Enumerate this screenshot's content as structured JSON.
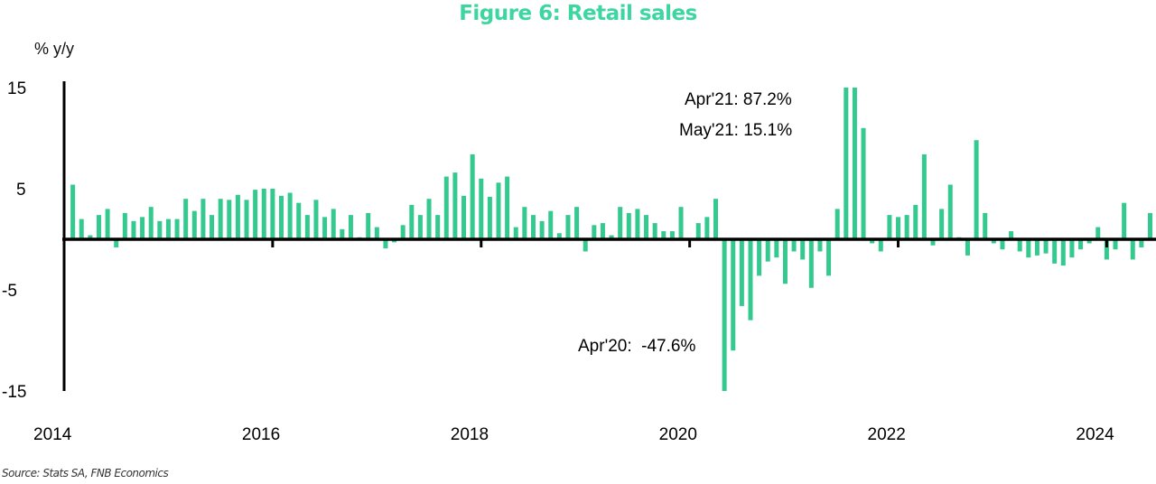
{
  "title": "Figure 6: Retail sales",
  "source": "Source: Stats SA, FNB Economics",
  "chart_data": {
    "type": "bar",
    "title": "Figure 6: Retail sales",
    "xlabel": "",
    "ylabel": "% y/y",
    "ylim": [
      -15,
      15
    ],
    "yticks": [
      "15",
      "5",
      "-5",
      "-15"
    ],
    "ytick_values": [
      15,
      5,
      -5,
      -15
    ],
    "xticks": [
      "2014",
      "2016",
      "2018",
      "2020",
      "2022",
      "2024"
    ],
    "start": "2014-02",
    "frequency": "monthly",
    "color": "#34c98f",
    "series": [
      {
        "name": "Retail sales % y/y",
        "values": [
          5.4,
          2.0,
          0.4,
          2.4,
          3.0,
          -0.8,
          2.6,
          1.8,
          2.2,
          3.2,
          1.8,
          2.0,
          2.0,
          4.0,
          2.8,
          4.0,
          2.4,
          4.0,
          3.9,
          4.4,
          3.9,
          4.9,
          5.0,
          5.0,
          4.3,
          4.6,
          3.6,
          2.4,
          3.9,
          2.2,
          3.0,
          1.0,
          2.4,
          0.2,
          2.6,
          1.2,
          -0.9,
          -0.3,
          1.4,
          3.4,
          2.4,
          4.0,
          2.4,
          6.2,
          6.6,
          4.3,
          8.4,
          6.0,
          4.2,
          5.6,
          6.2,
          1.2,
          3.2,
          2.4,
          1.8,
          2.8,
          0.6,
          2.4,
          3.2,
          -1.2,
          1.4,
          1.6,
          0.4,
          3.2,
          2.6,
          3.0,
          2.4,
          1.6,
          0.8,
          0.8,
          3.2,
          0.0,
          1.6,
          2.2,
          4.0,
          -15.0,
          -11.0,
          -6.6,
          -8.0,
          -3.6,
          -2.2,
          -1.8,
          -4.4,
          -1.2,
          -2.0,
          -4.8,
          -1.2,
          -3.6,
          3.0,
          15.0,
          15.0,
          11.0,
          -0.4,
          -1.2,
          2.4,
          2.2,
          2.4,
          3.4,
          8.4,
          -0.6,
          3.0,
          5.4,
          0.2,
          -1.6,
          9.8,
          2.6,
          -0.4,
          -1.0,
          0.8,
          -1.2,
          -1.8,
          -1.6,
          -1.4,
          -2.4,
          -2.6,
          -1.8,
          -1.0,
          -0.4,
          1.2,
          -2.0,
          -1.0,
          3.6,
          -2.0,
          -0.8,
          2.6,
          1.0,
          1.4,
          4.4
        ]
      }
    ],
    "annotations": [
      {
        "label": "Apr'21: 87.2%",
        "month": "2021-04",
        "value": 87.2
      },
      {
        "label": "May'21: 15.1%",
        "month": "2021-05",
        "value": 15.1
      },
      {
        "label": "Apr'20:  -47.6%",
        "month": "2020-04",
        "value": -47.6
      }
    ],
    "grid": false,
    "legend": "none"
  }
}
